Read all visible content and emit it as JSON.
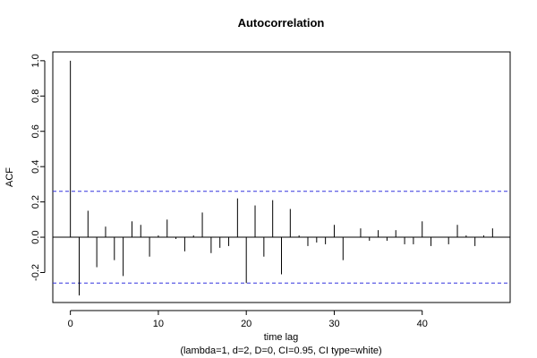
{
  "chart_data": {
    "type": "bar",
    "title": "Autocorrelation",
    "xlabel": "time lag",
    "subtitle": "(lambda=1, d=2, D=0, CI=0.95, CI type=white)",
    "ylabel": "ACF",
    "xlim": [
      -2,
      50
    ],
    "ylim": [
      -0.37,
      1.05
    ],
    "x_ticks": [
      0,
      10,
      20,
      30,
      40
    ],
    "y_ticks": [
      -0.2,
      0.0,
      0.2,
      0.4,
      0.6,
      0.8,
      1.0
    ],
    "y_tick_labels": [
      "-0.2",
      "0.0",
      "0.2",
      "0.4",
      "0.6",
      "0.8",
      "1.0"
    ],
    "confidence_limits": [
      0.26,
      -0.26
    ],
    "confidence_line_color": "#3333dd",
    "lags": [
      0,
      1,
      2,
      3,
      4,
      5,
      6,
      7,
      8,
      9,
      10,
      11,
      12,
      13,
      14,
      15,
      16,
      17,
      18,
      19,
      20,
      21,
      22,
      23,
      24,
      25,
      26,
      27,
      28,
      29,
      30,
      31,
      32,
      33,
      34,
      35,
      36,
      37,
      38,
      39,
      40,
      41,
      42,
      43,
      44,
      45,
      46,
      47,
      48
    ],
    "values": [
      1.0,
      -0.33,
      0.15,
      -0.17,
      0.06,
      -0.13,
      -0.22,
      0.09,
      0.07,
      -0.11,
      0.01,
      0.1,
      -0.01,
      -0.08,
      0.01,
      0.14,
      -0.09,
      -0.06,
      -0.05,
      0.22,
      -0.26,
      0.18,
      -0.11,
      0.21,
      -0.21,
      0.16,
      0.01,
      -0.05,
      -0.03,
      -0.04,
      0.07,
      -0.13,
      0.0,
      0.05,
      -0.02,
      0.04,
      -0.02,
      0.04,
      -0.04,
      -0.04,
      0.09,
      -0.05,
      0.0,
      -0.04,
      0.07,
      0.01,
      -0.05,
      0.01,
      0.05
    ],
    "grid": false
  }
}
